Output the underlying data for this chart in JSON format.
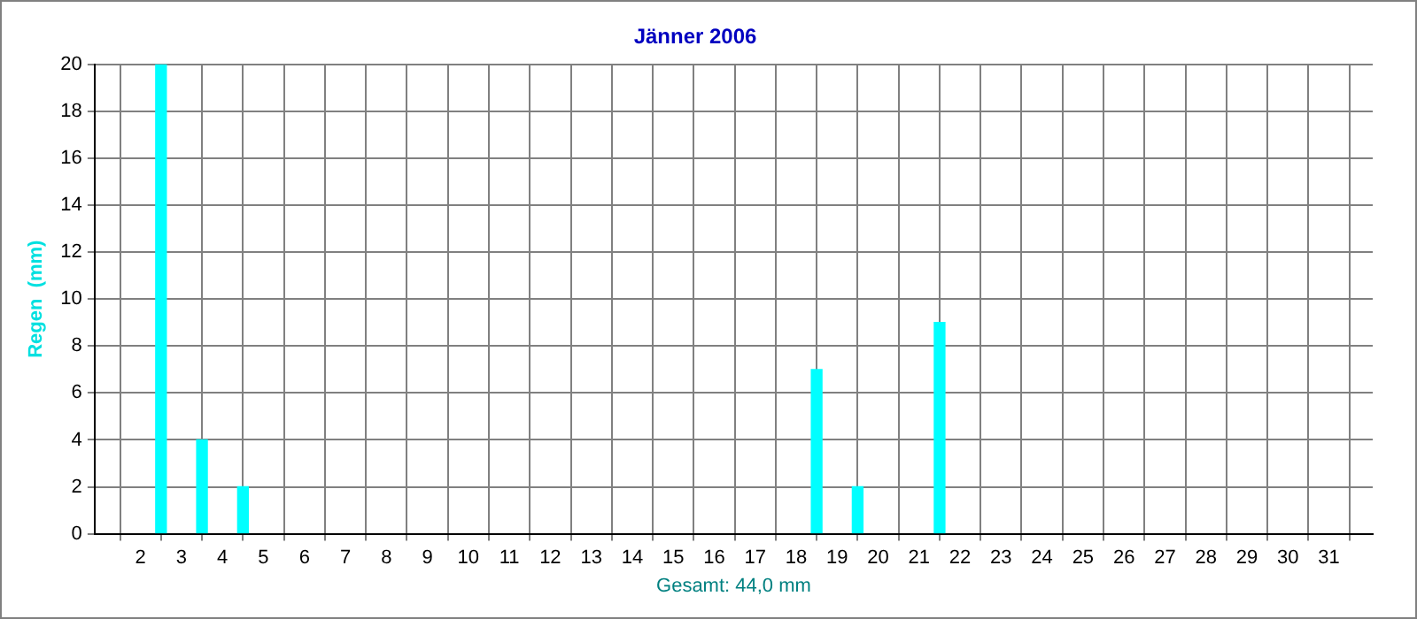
{
  "chart_data": {
    "type": "bar",
    "title": "Jänner 2006",
    "ylabel": "Regen  (mm)",
    "x": [
      2.5,
      3.5,
      4.5,
      18.5,
      19.5,
      21.5
    ],
    "values": [
      20,
      4,
      2,
      7,
      2,
      9
    ],
    "color": "#00ffff",
    "xlim": [
      1.4,
      31.55
    ],
    "xticks": [
      2,
      3,
      4,
      5,
      6,
      7,
      8,
      9,
      10,
      11,
      12,
      13,
      14,
      15,
      16,
      17,
      18,
      19,
      20,
      21,
      22,
      23,
      24,
      25,
      26,
      27,
      28,
      29,
      30,
      31
    ],
    "ylim": [
      0,
      20
    ],
    "yticks": [
      0,
      2,
      4,
      6,
      8,
      10,
      12,
      14,
      16,
      18,
      20
    ],
    "grid": true,
    "annotations": [
      "Gesamt: 44,0 mm"
    ]
  }
}
